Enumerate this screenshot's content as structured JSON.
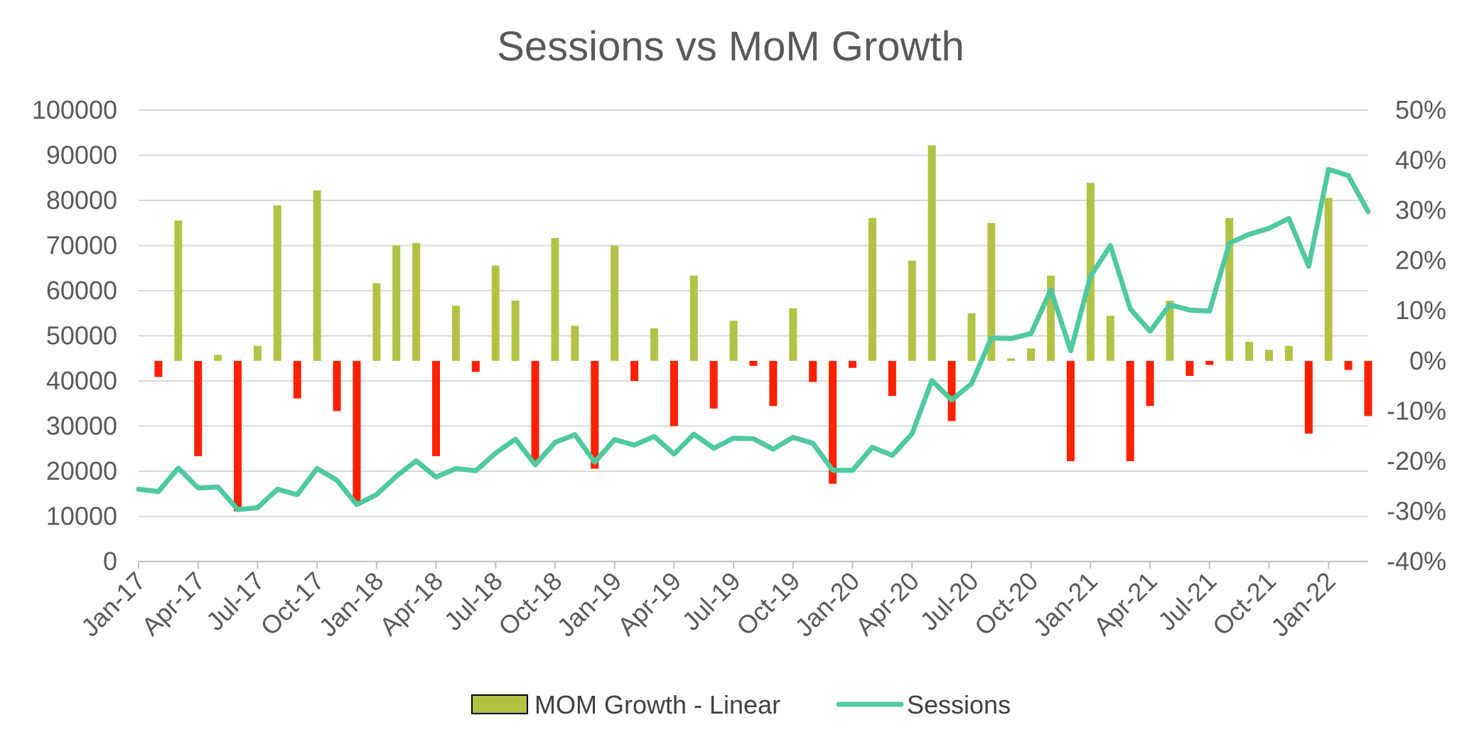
{
  "chart_data": {
    "type": "bar",
    "title": "Sessions vs MoM Growth",
    "left_axis": {
      "ylim": [
        0,
        100000
      ],
      "ticks": [
        "0",
        "10000",
        "20000",
        "30000",
        "40000",
        "50000",
        "60000",
        "70000",
        "80000",
        "90000",
        "100000"
      ]
    },
    "right_axis": {
      "ylim": [
        -0.4,
        0.5
      ],
      "ticks": [
        "-40%",
        "-30%",
        "-20%",
        "-10%",
        "0%",
        "10%",
        "20%",
        "30%",
        "40%",
        "50%"
      ]
    },
    "grid": true,
    "legend_position": "bottom",
    "x_tick_labels": [
      "Jan-17",
      "Apr-17",
      "Jul-17",
      "Oct-17",
      "Jan-18",
      "Apr-18",
      "Jul-18",
      "Oct-18",
      "Jan-19",
      "Apr-19",
      "Jul-19",
      "Oct-19",
      "Jan-20",
      "Apr-20",
      "Jul-20",
      "Oct-20",
      "Jan-21",
      "Apr-21",
      "Jul-21",
      "Oct-21",
      "Jan-22"
    ],
    "months": [
      "Jan-17",
      "Feb-17",
      "Mar-17",
      "Apr-17",
      "May-17",
      "Jun-17",
      "Jul-17",
      "Aug-17",
      "Sep-17",
      "Oct-17",
      "Nov-17",
      "Dec-17",
      "Jan-18",
      "Feb-18",
      "Mar-18",
      "Apr-18",
      "May-18",
      "Jun-18",
      "Jul-18",
      "Aug-18",
      "Sep-18",
      "Oct-18",
      "Nov-18",
      "Dec-18",
      "Jan-19",
      "Feb-19",
      "Mar-19",
      "Apr-19",
      "May-19",
      "Jun-19",
      "Jul-19",
      "Aug-19",
      "Sep-19",
      "Oct-19",
      "Nov-19",
      "Dec-19",
      "Jan-20",
      "Feb-20",
      "Mar-20",
      "Apr-20",
      "May-20",
      "Jun-20",
      "Jul-20",
      "Aug-20",
      "Sep-20",
      "Oct-20",
      "Nov-20",
      "Dec-20",
      "Jan-21",
      "Feb-21",
      "Mar-21",
      "Apr-21",
      "May-21",
      "Jun-21",
      "Jul-21",
      "Aug-21",
      "Sep-21",
      "Oct-21",
      "Nov-21",
      "Dec-21",
      "Jan-22",
      "Feb-22",
      "Mar-22"
    ],
    "series": [
      {
        "name": "MOM Growth - Linear",
        "axis": "right",
        "type": "bar",
        "positive_color": "#b3c244",
        "negative_color": "#ff2000",
        "values": [
          null,
          -0.032,
          0.28,
          -0.19,
          0.012,
          -0.3,
          0.03,
          0.31,
          -0.075,
          0.34,
          -0.1,
          -0.28,
          0.155,
          0.23,
          0.235,
          -0.19,
          0.11,
          -0.022,
          0.19,
          0.12,
          -0.2,
          0.245,
          0.07,
          -0.215,
          0.23,
          -0.04,
          0.065,
          -0.13,
          0.17,
          -0.095,
          0.08,
          -0.01,
          -0.09,
          0.105,
          -0.042,
          -0.245,
          -0.014,
          0.285,
          -0.07,
          0.2,
          0.43,
          -0.12,
          0.095,
          0.275,
          0.005,
          0.025,
          0.17,
          -0.2,
          0.355,
          0.09,
          -0.2,
          -0.09,
          0.12,
          -0.03,
          -0.008,
          0.285,
          0.038,
          0.022,
          0.03,
          -0.145,
          0.325,
          -0.018,
          -0.11
        ]
      },
      {
        "name": "Sessions",
        "axis": "left",
        "type": "line",
        "color": "#4fc99e",
        "values": [
          16000,
          15500,
          20700,
          16300,
          16500,
          11500,
          11900,
          16000,
          14800,
          20600,
          18000,
          12600,
          14800,
          18900,
          22300,
          18700,
          20600,
          20100,
          24000,
          27100,
          21400,
          26400,
          28100,
          22000,
          27000,
          25800,
          27700,
          23800,
          28200,
          25100,
          27300,
          27200,
          24900,
          27500,
          26200,
          20200,
          20200,
          25300,
          23500,
          28300,
          40100,
          35800,
          39400,
          49500,
          49400,
          50500,
          60200,
          46700,
          63200,
          70000,
          56000,
          51000,
          56900,
          55700,
          55500,
          70500,
          72500,
          73800,
          76000,
          65400,
          86900,
          85500,
          77500
        ]
      }
    ]
  },
  "legend": {
    "item1_label": "MOM Growth - Linear",
    "item2_label": "Sessions"
  }
}
